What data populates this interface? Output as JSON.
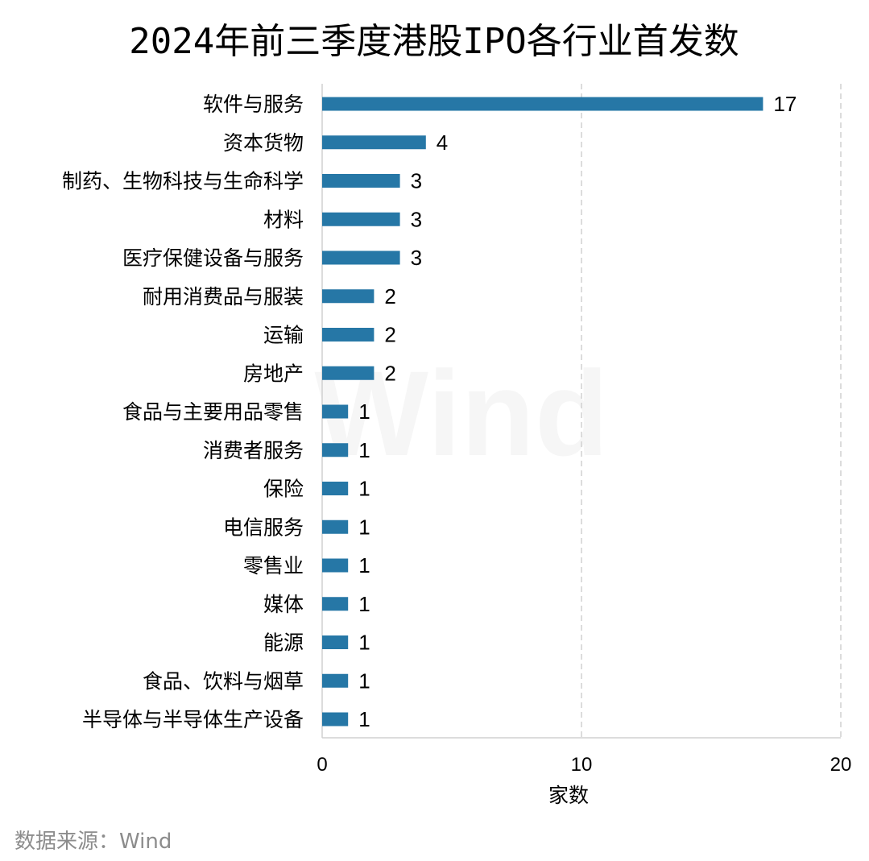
{
  "chart_data": {
    "type": "bar",
    "orientation": "horizontal",
    "title": "2024年前三季度港股IPO各行业首发数",
    "xlabel": "家数",
    "ylabel": "",
    "xlim": [
      0,
      20
    ],
    "xticks": [
      0,
      10,
      20
    ],
    "grid": "vertical dashed",
    "categories": [
      "软件与服务",
      "资本货物",
      "制药、生物科技与生命科学",
      "材料",
      "医疗保健设备与服务",
      "耐用消费品与服装",
      "运输",
      "房地产",
      "食品与主要用品零售",
      "消费者服务",
      "保险",
      "电信服务",
      "零售业",
      "媒体",
      "能源",
      "食品、饮料与烟草",
      "半导体与半导体生产设备"
    ],
    "values": [
      17,
      4,
      3,
      3,
      3,
      2,
      2,
      2,
      1,
      1,
      1,
      1,
      1,
      1,
      1,
      1,
      1
    ],
    "bar_color": "#2677a6",
    "gridline_color": "#d0d0d0",
    "axis_color": "#d0d0d0"
  },
  "source": "数据来源：Wind",
  "watermark": "Wind"
}
